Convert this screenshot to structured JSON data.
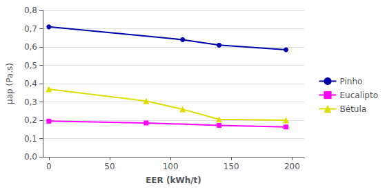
{
  "chart_data": {
    "type": "line",
    "xlabel": "EER (kWh/t)",
    "ylabel": "µap (Pa.s)",
    "series": [
      {
        "name": "Pinho",
        "color": "#0000AA",
        "marker": "circle",
        "x": [
          0,
          110,
          140,
          195
        ],
        "values": [
          0.71,
          0.64,
          0.61,
          0.585
        ]
      },
      {
        "name": "Eucalipto",
        "color": "#FF00FF",
        "marker": "square",
        "x": [
          0,
          80,
          140,
          195
        ],
        "values": [
          0.195,
          0.185,
          0.172,
          0.163
        ]
      },
      {
        "name": "Bétula",
        "color": "#DDDD00",
        "marker": "triangle",
        "x": [
          0,
          80,
          110,
          140,
          195
        ],
        "values": [
          0.37,
          0.305,
          0.26,
          0.205,
          0.2
        ]
      }
    ],
    "xlim": [
      -5,
      210
    ],
    "xticks": [
      0,
      50,
      100,
      150,
      200
    ],
    "ylim": [
      0,
      0.8
    ],
    "yticks": [
      {
        "value": 0,
        "label": "0,0"
      },
      {
        "value": 0.1,
        "label": "0,1"
      },
      {
        "value": 0.2,
        "label": "0,2"
      },
      {
        "value": 0.3,
        "label": "0,3"
      },
      {
        "value": 0.4,
        "label": "0,4"
      },
      {
        "value": 0.5,
        "label": "0,5"
      },
      {
        "value": 0.6,
        "label": "0,6"
      },
      {
        "value": 0.7,
        "label": "0,7"
      },
      {
        "value": 0.8,
        "label": "0,8"
      }
    ],
    "grid": true,
    "legend": "right"
  }
}
